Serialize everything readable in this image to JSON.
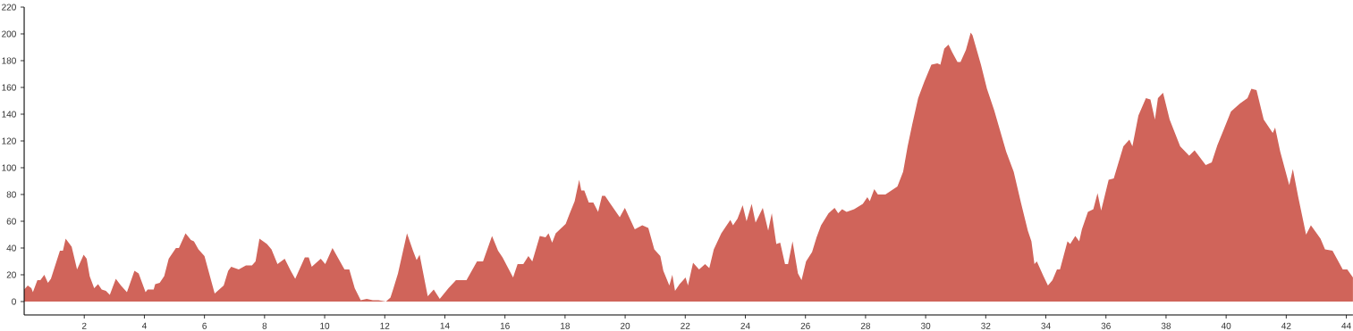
{
  "chart_data": {
    "type": "area",
    "x": [
      0,
      0.12,
      0.24,
      0.29,
      0.44,
      0.54,
      0.67,
      0.79,
      0.89,
      1.19,
      1.29,
      1.38,
      1.58,
      1.76,
      1.98,
      2.08,
      2.18,
      2.33,
      2.46,
      2.58,
      2.72,
      2.85,
      3.05,
      3.22,
      3.42,
      3.67,
      3.81,
      4.04,
      4.11,
      4.31,
      4.36,
      4.51,
      4.66,
      4.81,
      5.05,
      5.15,
      5.37,
      5.55,
      5.65,
      5.8,
      6.0,
      6.34,
      6.64,
      6.79,
      6.89,
      7.14,
      7.38,
      7.58,
      7.7,
      7.83,
      8.08,
      8.23,
      8.43,
      8.67,
      8.87,
      9.02,
      9.34,
      9.47,
      9.57,
      9.87,
      10.02,
      10.26,
      10.46,
      10.66,
      10.82,
      11.0,
      11.2,
      11.4,
      11.6,
      11.79,
      12.04,
      12.19,
      12.29,
      12.44,
      12.74,
      12.94,
      13.06,
      13.16,
      13.43,
      13.63,
      13.83,
      14.12,
      14.37,
      14.72,
      15.07,
      15.27,
      15.57,
      15.77,
      15.92,
      16.27,
      16.42,
      16.61,
      16.78,
      16.91,
      17.16,
      17.35,
      17.45,
      17.57,
      17.69,
      18.02,
      18.14,
      18.32,
      18.47,
      18.54,
      18.64,
      18.79,
      18.94,
      19.1,
      19.23,
      19.33,
      19.48,
      19.82,
      19.99,
      20.32,
      20.57,
      20.77,
      20.97,
      21.17,
      21.27,
      21.47,
      21.57,
      21.66,
      21.81,
      22.01,
      22.09,
      22.26,
      22.46,
      22.66,
      22.8,
      22.95,
      23.2,
      23.5,
      23.59,
      23.74,
      23.91,
      24.04,
      24.21,
      24.34,
      24.58,
      24.76,
      24.88,
      25.03,
      25.16,
      25.32,
      25.42,
      25.57,
      25.75,
      25.87,
      26.02,
      26.22,
      26.37,
      26.52,
      26.77,
      26.97,
      27.09,
      27.22,
      27.37,
      27.62,
      27.91,
      28.06,
      28.14,
      28.29,
      28.41,
      28.66,
      28.86,
      29.06,
      29.25,
      29.4,
      29.55,
      29.75,
      29.95,
      30.19,
      30.39,
      30.49,
      30.62,
      30.76,
      30.89,
      31.06,
      31.16,
      31.34,
      31.5,
      31.56,
      31.84,
      32.04,
      32.28,
      32.68,
      32.93,
      33.17,
      33.4,
      33.52,
      33.62,
      33.7,
      33.92,
      34.07,
      34.22,
      34.37,
      34.47,
      34.72,
      34.81,
      34.98,
      35.11,
      35.2,
      35.4,
      35.58,
      35.72,
      35.84,
      36.09,
      36.26,
      36.58,
      36.78,
      36.88,
      37.08,
      37.33,
      37.48,
      37.63,
      37.73,
      37.9,
      38.12,
      38.47,
      38.77,
      38.95,
      39.32,
      39.52,
      39.71,
      39.91,
      40.16,
      40.46,
      40.71,
      40.84,
      41.01,
      41.25,
      41.55,
      41.63,
      41.8,
      42.1,
      42.22,
      42.4,
      42.66,
      42.82,
      43.14,
      43.29,
      43.54,
      43.88,
      44.03,
      44.22
    ],
    "values": [
      9,
      12,
      10,
      7,
      16,
      16,
      20,
      14,
      17,
      38,
      38,
      47,
      41,
      24,
      35,
      32,
      19,
      10,
      13,
      9,
      8,
      5,
      17,
      12,
      7,
      23,
      21,
      7,
      9,
      9,
      13,
      14,
      19,
      32,
      40,
      40,
      51,
      46,
      45,
      39,
      34,
      6,
      12,
      23,
      26,
      24,
      27,
      27,
      30,
      47,
      43,
      39,
      28,
      32,
      23,
      17,
      33,
      33,
      26,
      32,
      28,
      40,
      32,
      24,
      24,
      10,
      1,
      2,
      1,
      1,
      0,
      3,
      10,
      21,
      51,
      38,
      31,
      35,
      4,
      9,
      2,
      10,
      16,
      16,
      30,
      30,
      49,
      38,
      33,
      18,
      28,
      28,
      34,
      30,
      49,
      48,
      51,
      44,
      51,
      58,
      65,
      75,
      91,
      83,
      83,
      74,
      74,
      67,
      79,
      79,
      74,
      63,
      70,
      54,
      57,
      55,
      39,
      34,
      23,
      12,
      20,
      8,
      13,
      18,
      12,
      29,
      24,
      28,
      25,
      39,
      51,
      61,
      57,
      62,
      72,
      60,
      73,
      59,
      70,
      53,
      66,
      43,
      44,
      28,
      28,
      45,
      21,
      16,
      30,
      37,
      48,
      57,
      66,
      70,
      66,
      69,
      67,
      69,
      73,
      78,
      75,
      84,
      80,
      80,
      83,
      86,
      97,
      116,
      132,
      152,
      164,
      177,
      178,
      177,
      189,
      192,
      186,
      179,
      179,
      188,
      201,
      199,
      177,
      159,
      143,
      112,
      97,
      74,
      53,
      45,
      28,
      30,
      19,
      12,
      16,
      24,
      24,
      45,
      43,
      49,
      45,
      54,
      67,
      69,
      81,
      68,
      91,
      92,
      116,
      121,
      116,
      139,
      152,
      151,
      136,
      152,
      156,
      136,
      116,
      109,
      113,
      102,
      104,
      117,
      128,
      142,
      148,
      152,
      159,
      158,
      136,
      126,
      130,
      112,
      87,
      99,
      78,
      50,
      57,
      47,
      39,
      38,
      24,
      24,
      18
    ],
    "color": "#d0645a",
    "xlim": [
      0,
      44.22
    ],
    "ylim": [
      -10,
      220
    ],
    "xticks": [
      2,
      4,
      6,
      8,
      10,
      12,
      14,
      16,
      18,
      20,
      22,
      24,
      26,
      28,
      30,
      32,
      34,
      36,
      38,
      40,
      42,
      44
    ],
    "yticks": [
      0,
      20,
      40,
      60,
      80,
      100,
      120,
      140,
      160,
      180,
      200,
      220
    ]
  }
}
